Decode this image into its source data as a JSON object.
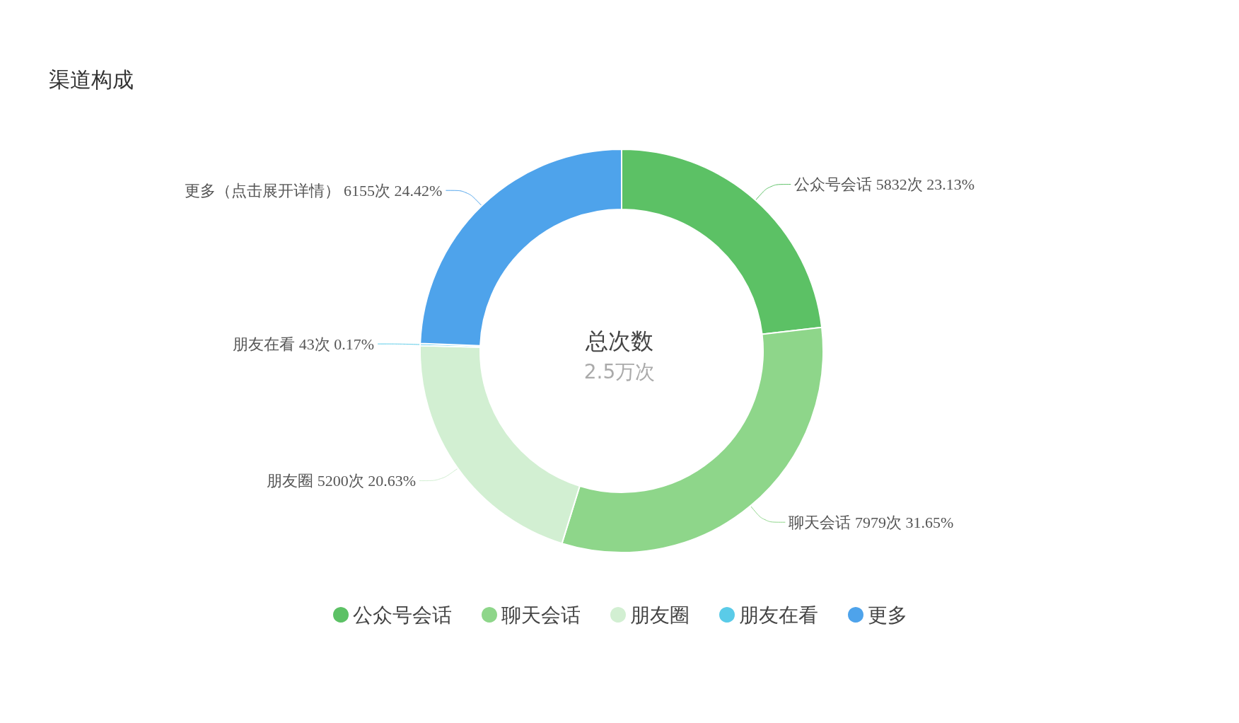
{
  "chart_data": {
    "type": "donut",
    "title": "渠道构成",
    "categories": [
      "公众号会话",
      "聊天会话",
      "朋友圈",
      "朋友在看",
      "更多"
    ],
    "values": [
      5832,
      7979,
      5200,
      43,
      6155
    ],
    "colors": [
      "#5cc165",
      "#8ed68a",
      "#d2efd2",
      "#5acbe8",
      "#4ea3eb"
    ],
    "value_labels": [
      "公众号会话 5832次 23.13%",
      "聊天会话 7979次 31.65%",
      "朋友圈 5200次 20.63%",
      "朋友在看 43次 0.17%",
      "更多（点击展开详情） 6155次 24.42%"
    ],
    "annotations": [
      "总次数",
      "2.5万次"
    ],
    "legend": "bottom"
  }
}
